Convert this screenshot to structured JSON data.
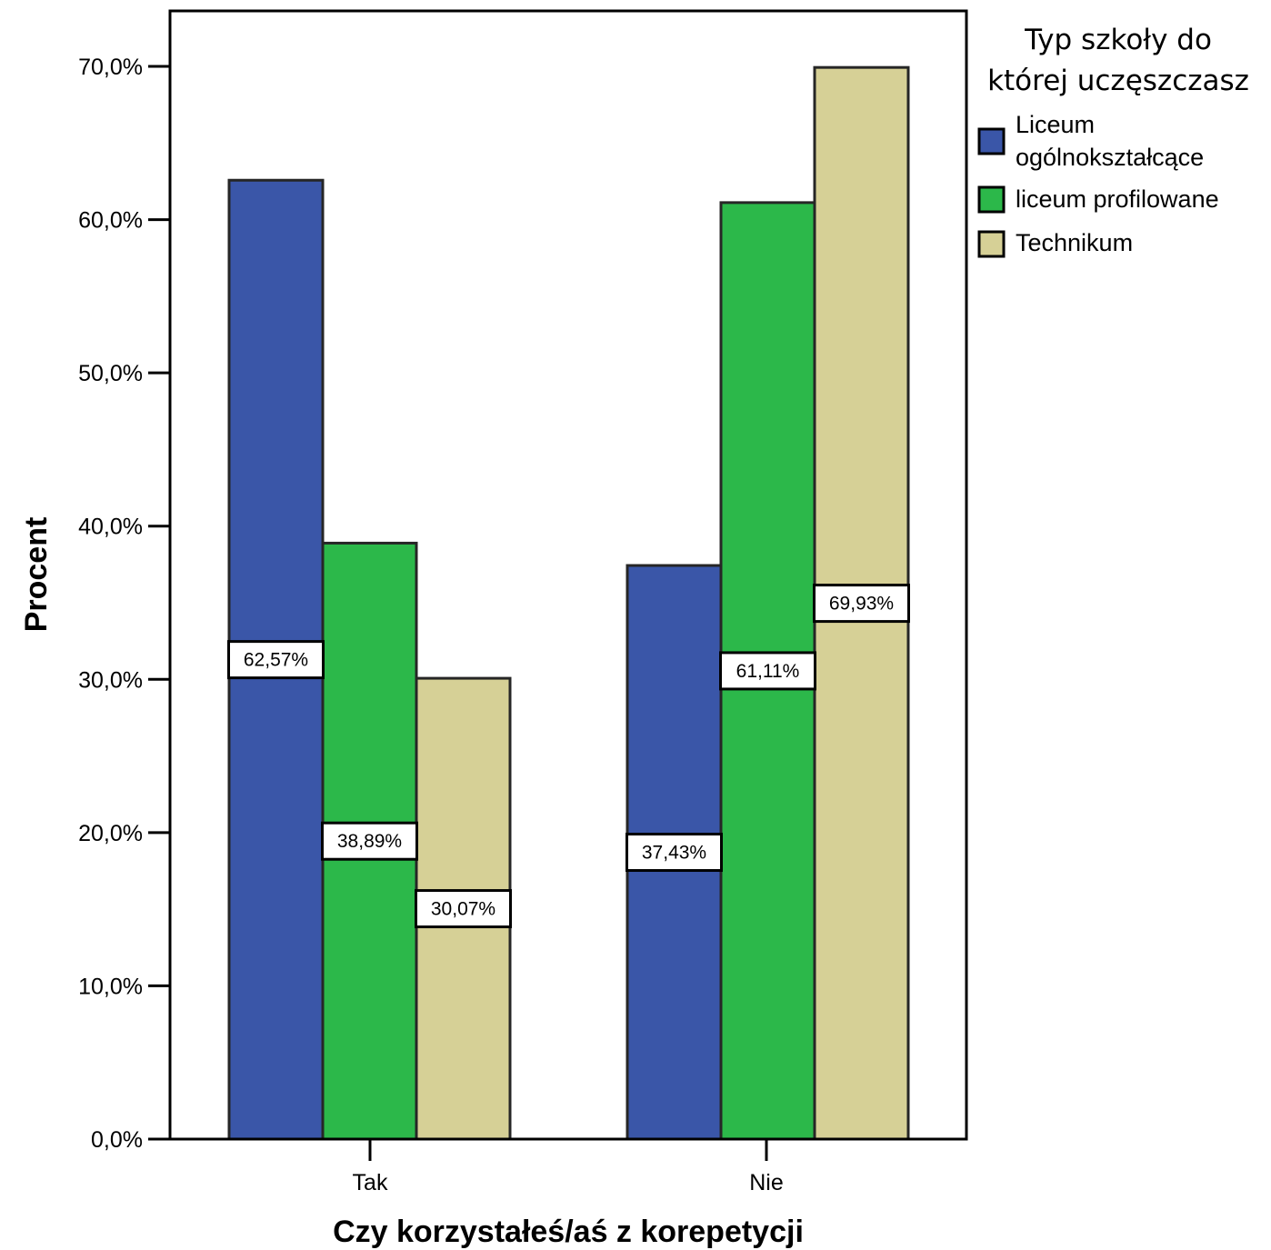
{
  "chart_data": {
    "type": "bar",
    "xlabel": "Czy korzystałeś/aś z korepetycji",
    "ylabel": "Procent",
    "categories": [
      "Tak",
      "Nie"
    ],
    "ylim": [
      0,
      75
    ],
    "yticks": [
      0,
      10,
      20,
      30,
      40,
      50,
      60,
      70
    ],
    "ytick_labels": [
      "0,0%",
      "10,0%",
      "20,0%",
      "30,0%",
      "40,0%",
      "50,0%",
      "60,0%",
      "70,0%"
    ],
    "legend": {
      "title_lines": [
        "Typ szkoły do",
        "której uczęszczasz"
      ],
      "placement": "right, outside plot"
    },
    "series": [
      {
        "name": "Liceum ogólnokształcące",
        "legend_lines": [
          "Liceum",
          "ogólnokształcące"
        ],
        "color": "#3a56a8",
        "values": [
          62.57,
          37.43
        ],
        "labels": [
          "62,57%",
          "37,43%"
        ]
      },
      {
        "name": "liceum profilowane",
        "legend_lines": [
          "liceum profilowane"
        ],
        "color": "#2cb84a",
        "values": [
          38.89,
          61.11
        ],
        "labels": [
          "38,89%",
          "61,11%"
        ]
      },
      {
        "name": "Technikum",
        "legend_lines": [
          "Technikum"
        ],
        "color": "#d6d096",
        "values": [
          30.07,
          69.93
        ],
        "labels": [
          "30,07%",
          "69,93%"
        ]
      }
    ],
    "grid": false
  }
}
